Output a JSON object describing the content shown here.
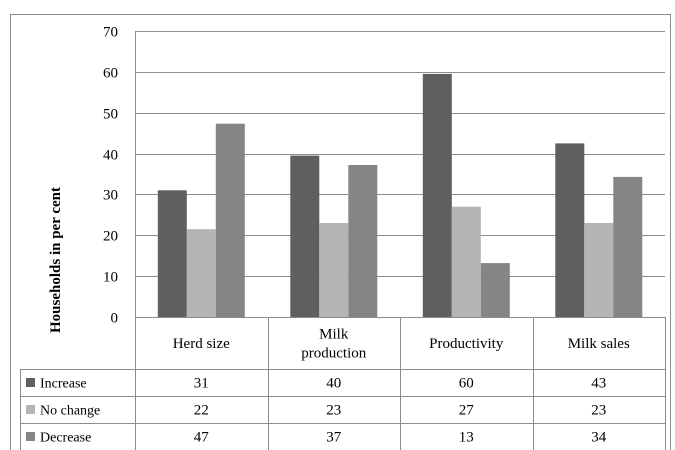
{
  "chart_data": {
    "type": "bar",
    "title": "",
    "xlabel": "",
    "ylabel": "Households in per cent",
    "ylim": [
      0,
      70
    ],
    "yticks": [
      0,
      10,
      20,
      30,
      40,
      50,
      60,
      70
    ],
    "grid": true,
    "legend": "data-table-left",
    "categories": [
      [
        "Herd size"
      ],
      [
        "Milk",
        "production"
      ],
      [
        "Productivity"
      ],
      [
        "Milk sales"
      ]
    ],
    "series": [
      {
        "name": "Increase",
        "color": "#5f5f5f",
        "values": [
          31,
          40,
          60,
          43
        ],
        "display": [
          "31",
          "40",
          "60",
          "43"
        ]
      },
      {
        "name": "No change",
        "color": "#b4b4b4",
        "values": [
          22,
          23,
          27,
          23
        ],
        "display": [
          "22",
          "23",
          "27",
          "23"
        ]
      },
      {
        "name": "Decrease",
        "color": "#858585",
        "values": [
          47,
          37,
          13,
          34
        ],
        "display": [
          "47",
          "37",
          "13",
          "34"
        ]
      }
    ],
    "bar_heights_estimated": [
      [
        31,
        39.5,
        59.5,
        42.5
      ],
      [
        21.5,
        23,
        27,
        23
      ],
      [
        47.3,
        37.2,
        13.2,
        34.3
      ]
    ]
  }
}
